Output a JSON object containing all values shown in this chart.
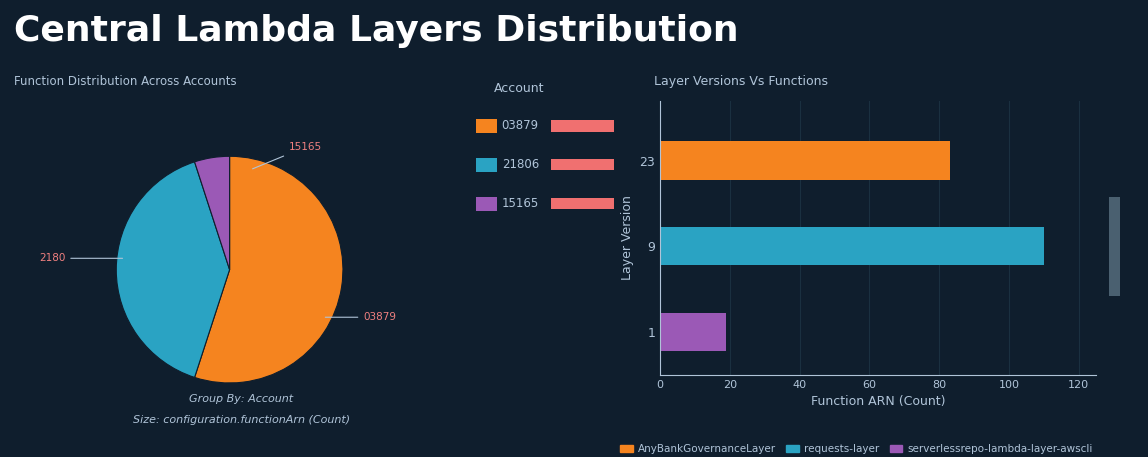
{
  "bg_color": "#0f1e2d",
  "title": "Central Lambda Layers Distribution",
  "title_color": "#ffffff",
  "title_fontsize": 26,
  "pie_title": "Function Distribution Across Accounts",
  "pie_values": [
    55,
    40,
    5
  ],
  "pie_labels": [
    "03879",
    "21806",
    "15165"
  ],
  "pie_colors": [
    "#f5841f",
    "#2aa3c3",
    "#9b59b6"
  ],
  "pie_label_color": "#f08080",
  "pie_subtitle1": "Group By: Account",
  "pie_subtitle2": "Size: configuration.functionArn (Count)",
  "legend_title": "Account",
  "legend_labels": [
    "03879",
    "21806",
    "15165"
  ],
  "legend_colors": [
    "#f5841f",
    "#2aa3c3",
    "#9b59b6"
  ],
  "bar_title": "Layer Versions Vs Functions",
  "bar_categories": [
    "23",
    "9",
    "1"
  ],
  "bar_values": [
    83,
    110,
    19
  ],
  "bar_colors": [
    "#f5841f",
    "#2aa3c3",
    "#9b59b6"
  ],
  "bar_xlabel": "Function ARN (Count)",
  "bar_ylabel": "Layer Version",
  "bar_xlim": [
    0,
    125
  ],
  "bar_xticks": [
    0,
    20,
    40,
    60,
    80,
    100,
    120
  ],
  "bar_legend_labels": [
    "AnyBankGovernanceLayer",
    "requests-layer",
    "serverlessrepo-lambda-layer-awscli"
  ],
  "bar_legend_colors": [
    "#f5841f",
    "#2aa3c3",
    "#9b59b6"
  ],
  "text_color": "#b0c4d8",
  "axis_color": "#b0c4d8",
  "grid_color": "#1a3040"
}
